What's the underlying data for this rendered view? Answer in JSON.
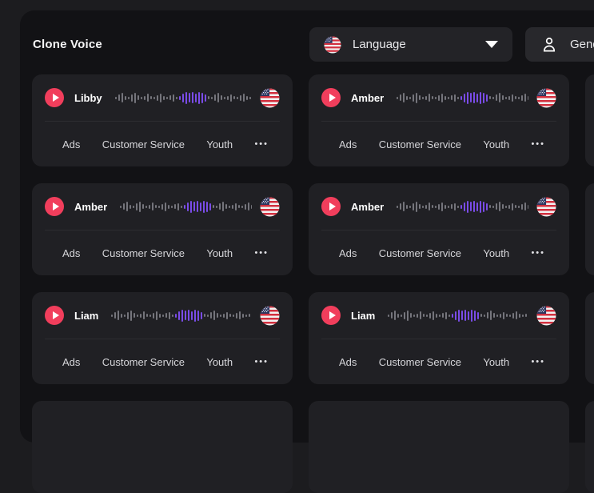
{
  "header": {
    "title": "Clone Voice",
    "language_filter": {
      "label": "Language",
      "icon": "us-flag-icon"
    },
    "gender_filter": {
      "label": "Gender",
      "icon": "person-icon"
    }
  },
  "card": {
    "tags": [
      "Ads",
      "Customer Service",
      "Youth"
    ],
    "more_label": "•••",
    "flag_icon": "us-flag-icon",
    "play_icon": "play-icon"
  },
  "voices": [
    {
      "name": "Libby"
    },
    {
      "name": "Amber"
    },
    {
      "name": "Amber"
    },
    {
      "name": "Amber"
    },
    {
      "name": "Liam"
    },
    {
      "name": "Liam"
    }
  ],
  "waveform": {
    "heights": [
      3,
      8,
      12,
      5,
      3,
      9,
      13,
      6,
      3,
      5,
      10,
      4,
      3,
      7,
      11,
      5,
      3,
      6,
      9,
      3,
      5,
      11,
      15,
      12,
      14,
      11,
      15,
      13,
      9,
      4,
      3,
      8,
      12,
      6,
      3,
      5,
      9,
      4,
      3,
      7,
      10,
      5,
      3,
      4
    ],
    "active_start": 20,
    "active_end": 28
  },
  "colors": {
    "play_button": "#f13e5c",
    "wave_active": "#7a4ce8",
    "wave_inactive": "#75757c",
    "panel_bg": "#121215",
    "card_bg": "#202024",
    "outer_bg": "#1c1c1f"
  }
}
